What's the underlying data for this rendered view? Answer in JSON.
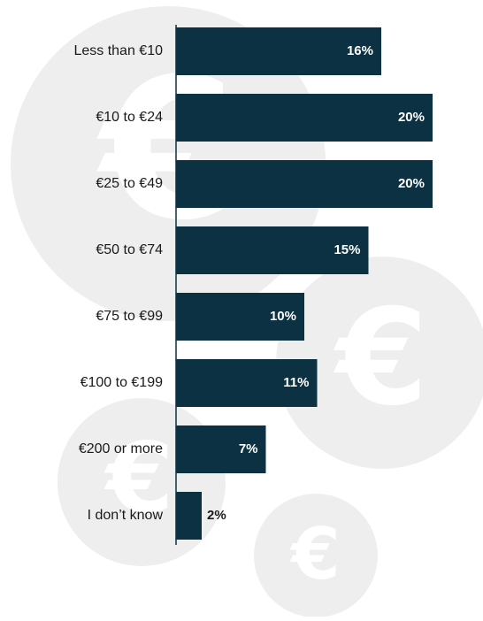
{
  "chart_data": {
    "type": "bar",
    "orientation": "horizontal",
    "categories": [
      "Less than €10",
      "€10 to €24",
      "€25 to €49",
      "€50 to €74",
      "€75 to €99",
      "€100 to €199",
      "€200 or more",
      "I don’t know"
    ],
    "values": [
      16,
      20,
      20,
      15,
      10,
      11,
      7,
      2
    ],
    "value_labels": [
      "16%",
      "20%",
      "20%",
      "15%",
      "10%",
      "11%",
      "7%",
      "2%"
    ],
    "color": "#0b3142"
  }
}
